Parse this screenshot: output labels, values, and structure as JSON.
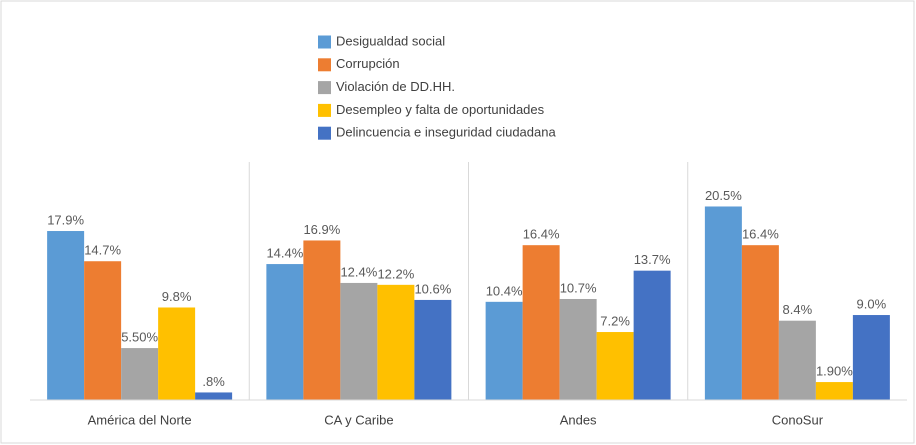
{
  "chart_data": {
    "type": "bar",
    "categories": [
      "América del Norte",
      "CA y Caribe",
      "Andes",
      "ConoSur"
    ],
    "series": [
      {
        "name": "Desigualdad social",
        "color": "#5b9bd5",
        "values": [
          17.9,
          14.4,
          10.4,
          20.5
        ],
        "value_labels": [
          "17.9%",
          "14.4%",
          "10.4%",
          "20.5%"
        ]
      },
      {
        "name": "Corrupción",
        "color": "#ed7d31",
        "values": [
          14.7,
          16.9,
          16.4,
          16.4
        ],
        "value_labels": [
          "14.7%",
          "16.9%",
          "16.4%",
          "16.4%"
        ]
      },
      {
        "name": "Violación de DD.HH.",
        "color": "#a5a5a5",
        "values": [
          5.5,
          12.4,
          10.7,
          8.4
        ],
        "value_labels": [
          "5.50%",
          "12.4%",
          "10.7%",
          "8.4%"
        ]
      },
      {
        "name": "Desempleo y falta de oportunidades",
        "color": "#ffc000",
        "values": [
          9.8,
          12.2,
          7.2,
          1.9
        ],
        "value_labels": [
          "9.8%",
          "12.2%",
          "7.2%",
          "1.90%"
        ]
      },
      {
        "name": "Delincuencia e inseguridad ciudadana",
        "color": "#4472c4",
        "values": [
          0.8,
          10.6,
          13.7,
          9.0
        ],
        "value_labels": [
          ".8%",
          "10.6%",
          "13.7%",
          "9.0%"
        ]
      }
    ]
  }
}
